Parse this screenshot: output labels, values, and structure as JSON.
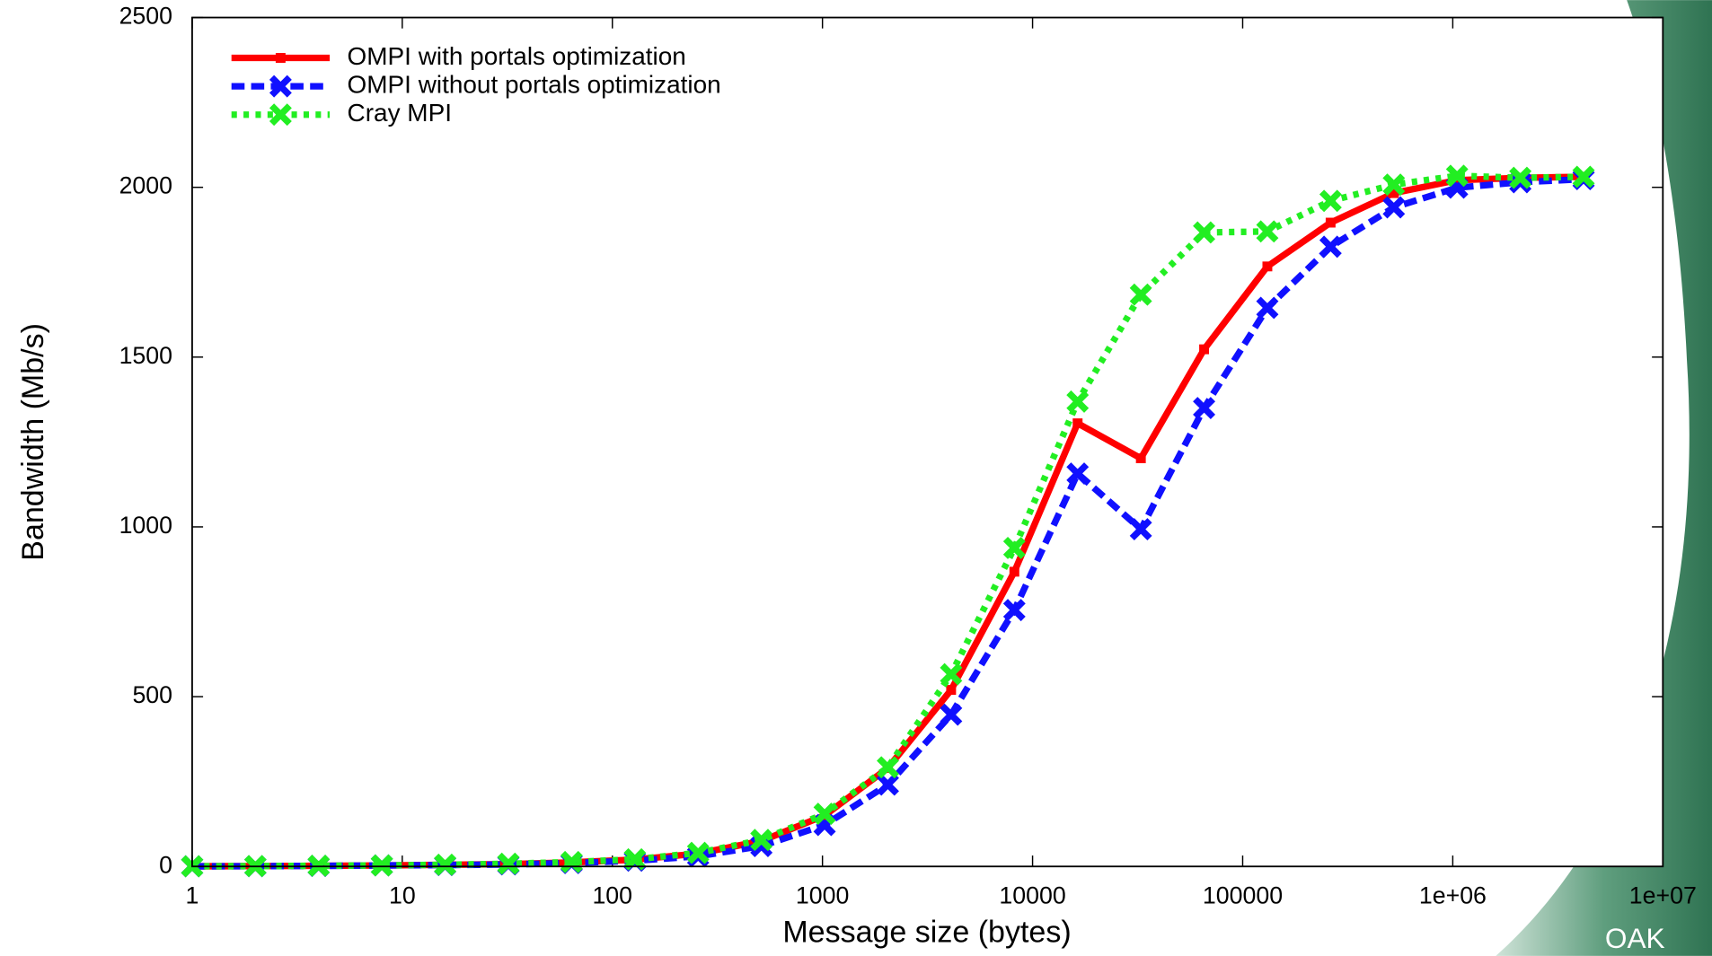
{
  "chart_data": {
    "type": "line",
    "xlabel": "Message size (bytes)",
    "ylabel": "Bandwidth (Mb/s)",
    "xscale": "log",
    "xlim": [
      1,
      10000000
    ],
    "xticks": [
      1,
      10,
      100,
      1000,
      10000,
      100000,
      {
        "value": 1000000,
        "label": "1e+06"
      },
      {
        "value": 10000000,
        "label": "1e+07"
      }
    ],
    "ylim": [
      0,
      2500
    ],
    "yticks": [
      0,
      500,
      1000,
      1500,
      2000,
      2500
    ],
    "legend": "top-left",
    "x": [
      1,
      2,
      4,
      8,
      16,
      32,
      64,
      128,
      256,
      512,
      1024,
      2048,
      4096,
      8192,
      16384,
      32768,
      65536,
      131072,
      262144,
      524288,
      1048576,
      2097152,
      4194304
    ],
    "series": [
      {
        "name": "OMPI with portals optimization",
        "color": "#ff0000",
        "dash": "solid",
        "marker": "square",
        "values": [
          0.5,
          1,
          2,
          3,
          5,
          7,
          12,
          20,
          38,
          75,
          150,
          290,
          520,
          868,
          1305,
          1202,
          1523,
          1767,
          1896,
          1983,
          2021,
          2028,
          2031
        ]
      },
      {
        "name": "OMPI without portals optimization",
        "color": "#1010ff",
        "dash": "dashed",
        "marker": "cross",
        "values": [
          0.4,
          0.8,
          1.6,
          3,
          4,
          6,
          10,
          17,
          30,
          60,
          122,
          241,
          447,
          755,
          1157,
          993,
          1350,
          1645,
          1825,
          1941,
          1999,
          2015,
          2024
        ]
      },
      {
        "name": "Cray MPI",
        "color": "#22ee22",
        "dash": "dotted",
        "marker": "cross",
        "values": [
          0.5,
          1,
          2,
          3,
          5,
          8,
          13,
          21,
          40,
          78,
          155,
          292,
          566,
          938,
          1369,
          1684,
          1867,
          1870,
          1960,
          2008,
          2034,
          2028,
          2031
        ]
      }
    ]
  },
  "logo_text": "OAK"
}
